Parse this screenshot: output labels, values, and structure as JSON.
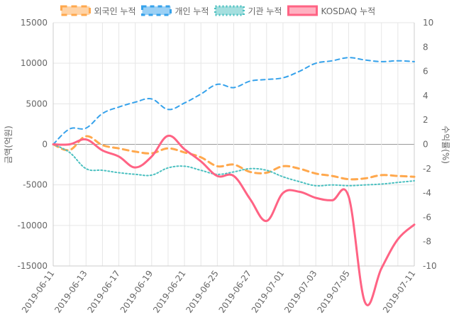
{
  "chart_data": {
    "type": "line",
    "x": [
      "2019-06-11",
      "2019-06-12",
      "2019-06-13",
      "2019-06-14",
      "2019-06-17",
      "2019-06-18",
      "2019-06-19",
      "2019-06-20",
      "2019-06-21",
      "2019-06-24",
      "2019-06-25",
      "2019-06-26",
      "2019-06-27",
      "2019-06-28",
      "2019-07-01",
      "2019-07-02",
      "2019-07-03",
      "2019-07-04",
      "2019-07-05",
      "2019-07-08",
      "2019-07-09",
      "2019-07-10",
      "2019-07-11"
    ],
    "xticks": [
      "2019-06-11",
      "2019-06-13",
      "2019-06-17",
      "2019-06-19",
      "2019-06-21",
      "2019-06-25",
      "2019-06-27",
      "2019-07-01",
      "2019-07-03",
      "2019-07-05",
      "2019-07-11"
    ],
    "ylabel_left": "금액(억원)",
    "ylabel_right": "수익률(%)",
    "ylim_left": [
      -15000,
      15000
    ],
    "yticks_left": [
      15000,
      10000,
      5000,
      0,
      -5000,
      -10000,
      -15000
    ],
    "ylim_right": [
      -10,
      10
    ],
    "yticks_right": [
      10,
      8,
      6,
      4,
      2,
      0,
      -2,
      -4,
      -6,
      -8,
      -10
    ],
    "legend_position": "top",
    "grid": true,
    "series": [
      {
        "name": "외국인 누적",
        "axis": "left",
        "color": "#FFA84D",
        "style": "dashed-thick",
        "values": [
          0,
          -700,
          1000,
          -100,
          -500,
          -900,
          -1100,
          -500,
          -1000,
          -1600,
          -2700,
          -2500,
          -3400,
          -3500,
          -2700,
          -3000,
          -3600,
          -3900,
          -4300,
          -4200,
          -3800,
          -3900,
          -4000
        ]
      },
      {
        "name": "개인 누적",
        "axis": "left",
        "color": "#36A2EB",
        "style": "dashed",
        "values": [
          0,
          1900,
          2000,
          3800,
          4600,
          5200,
          5600,
          4300,
          5100,
          6200,
          7400,
          7000,
          7800,
          8000,
          8200,
          9000,
          10000,
          10300,
          10700,
          10400,
          10200,
          10300,
          10200
        ]
      },
      {
        "name": "기관 누적",
        "axis": "left",
        "color": "#4BC0C0",
        "style": "dotted",
        "values": [
          0,
          -1000,
          -3000,
          -3200,
          -3500,
          -3700,
          -3800,
          -2900,
          -2700,
          -3200,
          -3700,
          -3400,
          -3000,
          -3200,
          -4000,
          -4600,
          -5100,
          -5000,
          -5100,
          -5000,
          -4900,
          -4700,
          -4500
        ]
      },
      {
        "name": "KOSDAQ 누적",
        "axis": "right",
        "color": "#FF6384",
        "style": "solid",
        "values": [
          0,
          0,
          0.4,
          -0.5,
          -1.0,
          -1.9,
          -1.0,
          0.7,
          -0.4,
          -1.4,
          -2.6,
          -2.6,
          -4.5,
          -6.3,
          -4.0,
          -3.9,
          -4.4,
          -4.6,
          -4.3,
          -13.0,
          -10.2,
          -7.8,
          -6.6
        ]
      }
    ]
  }
}
